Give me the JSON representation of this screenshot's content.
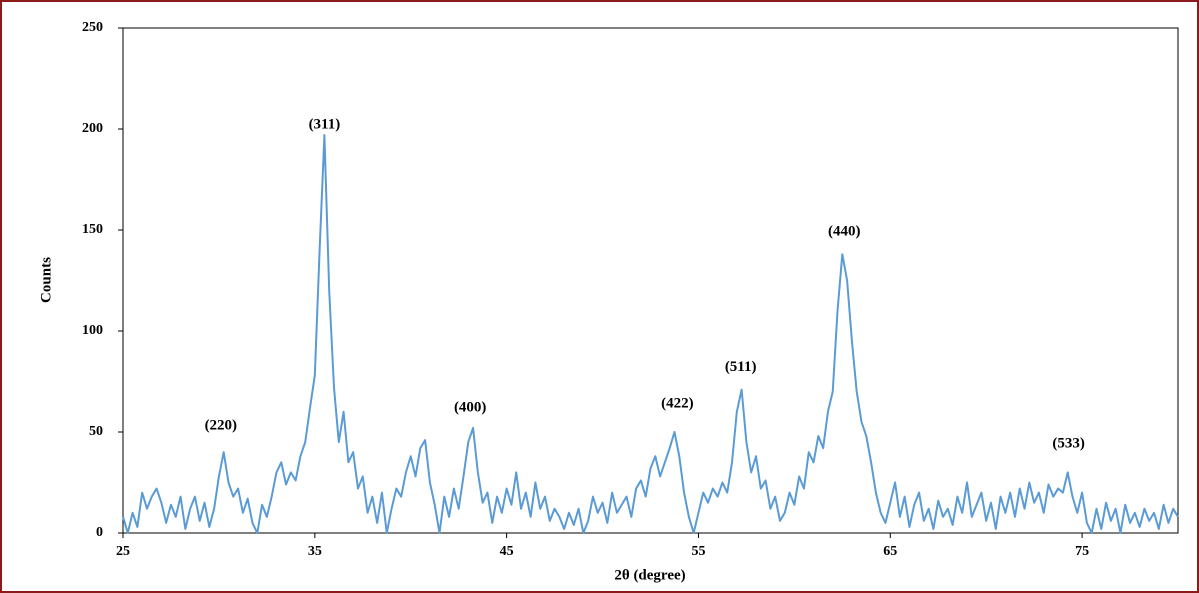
{
  "chart_data": {
    "type": "line",
    "x_label": "2θ (degree)",
    "y_label": "Counts",
    "xlim": [
      25,
      80
    ],
    "xticks": [
      25,
      35,
      45,
      55,
      65,
      75
    ],
    "ylim": [
      0,
      250
    ],
    "yticks": [
      0,
      50,
      100,
      150,
      200,
      250
    ],
    "series": [
      {
        "color": "#5b9bd5",
        "x": [
          25,
          25.25,
          25.5,
          25.75,
          26,
          26.25,
          26.5,
          26.75,
          27,
          27.25,
          27.5,
          27.75,
          28,
          28.25,
          28.5,
          28.75,
          29,
          29.25,
          29.5,
          29.75,
          30,
          30.25,
          30.5,
          30.75,
          31,
          31.25,
          31.5,
          31.75,
          32,
          32.25,
          32.5,
          32.75,
          33,
          33.25,
          33.5,
          33.75,
          34,
          34.25,
          34.5,
          34.75,
          35,
          35.25,
          35.5,
          35.75,
          36,
          36.25,
          36.5,
          36.75,
          37,
          37.25,
          37.5,
          37.75,
          38,
          38.25,
          38.5,
          38.75,
          39,
          39.25,
          39.5,
          39.75,
          40,
          40.25,
          40.5,
          40.75,
          41,
          41.25,
          41.5,
          41.75,
          42,
          42.25,
          42.5,
          42.75,
          43,
          43.25,
          43.5,
          43.75,
          44,
          44.25,
          44.5,
          44.75,
          45,
          45.25,
          45.5,
          45.75,
          46,
          46.25,
          46.5,
          46.75,
          47,
          47.25,
          47.5,
          47.75,
          48,
          48.25,
          48.5,
          48.75,
          49,
          49.25,
          49.5,
          49.75,
          50,
          50.25,
          50.5,
          50.75,
          51,
          51.25,
          51.5,
          51.75,
          52,
          52.25,
          52.5,
          52.75,
          53,
          53.25,
          53.5,
          53.75,
          54,
          54.25,
          54.5,
          54.75,
          55,
          55.25,
          55.5,
          55.75,
          56,
          56.25,
          56.5,
          56.75,
          57,
          57.25,
          57.5,
          57.75,
          58,
          58.25,
          58.5,
          58.75,
          59,
          59.25,
          59.5,
          59.75,
          60,
          60.25,
          60.5,
          60.75,
          61,
          61.25,
          61.5,
          61.75,
          62,
          62.25,
          62.5,
          62.75,
          63,
          63.25,
          63.5,
          63.75,
          64,
          64.25,
          64.5,
          64.75,
          65,
          65.25,
          65.5,
          65.75,
          66,
          66.25,
          66.5,
          66.75,
          67,
          67.25,
          67.5,
          67.75,
          68,
          68.25,
          68.5,
          68.75,
          69,
          69.25,
          69.5,
          69.75,
          70,
          70.25,
          70.5,
          70.75,
          71,
          71.25,
          71.5,
          71.75,
          72,
          72.25,
          72.5,
          72.75,
          73,
          73.25,
          73.5,
          73.75,
          74,
          74.25,
          74.5,
          74.75,
          75,
          75.25,
          75.5,
          75.75,
          76,
          76.25,
          76.5,
          76.75,
          77,
          77.25,
          77.5,
          77.75,
          78,
          78.25,
          78.5,
          78.75,
          79,
          79.25,
          79.5,
          79.75,
          80
        ],
        "values": [
          8,
          0,
          10,
          3,
          20,
          12,
          18,
          22,
          15,
          5,
          14,
          8,
          18,
          2,
          12,
          18,
          6,
          15,
          3,
          12,
          28,
          40,
          25,
          18,
          22,
          10,
          17,
          5,
          0,
          14,
          8,
          18,
          30,
          35,
          24,
          30,
          26,
          38,
          45,
          62,
          78,
          140,
          197,
          120,
          72,
          45,
          60,
          35,
          40,
          22,
          28,
          10,
          18,
          5,
          20,
          0,
          12,
          22,
          18,
          30,
          38,
          28,
          42,
          46,
          25,
          14,
          0,
          18,
          8,
          22,
          12,
          28,
          45,
          52,
          30,
          15,
          20,
          5,
          18,
          10,
          22,
          14,
          30,
          12,
          20,
          8,
          25,
          12,
          18,
          6,
          12,
          8,
          2,
          10,
          4,
          12,
          0,
          6,
          18,
          10,
          15,
          5,
          20,
          10,
          14,
          18,
          8,
          22,
          26,
          18,
          32,
          38,
          28,
          35,
          42,
          50,
          38,
          20,
          8,
          0,
          10,
          20,
          15,
          22,
          18,
          25,
          20,
          35,
          60,
          71,
          45,
          30,
          38,
          22,
          26,
          12,
          18,
          6,
          10,
          20,
          14,
          28,
          22,
          40,
          35,
          48,
          42,
          60,
          70,
          110,
          138,
          125,
          95,
          70,
          55,
          48,
          35,
          20,
          10,
          5,
          15,
          25,
          8,
          18,
          3,
          14,
          20,
          6,
          12,
          2,
          16,
          8,
          12,
          4,
          18,
          10,
          25,
          8,
          14,
          20,
          6,
          15,
          2,
          18,
          10,
          20,
          8,
          22,
          12,
          25,
          15,
          20,
          10,
          24,
          18,
          22,
          20,
          30,
          18,
          10,
          20,
          5,
          0,
          12,
          2,
          15,
          6,
          12,
          0,
          14,
          5,
          10,
          3,
          12,
          6,
          10,
          2,
          14,
          5,
          12,
          8
        ]
      }
    ],
    "annotations": [
      {
        "text": "(220)",
        "x": 30.1,
        "y": 48
      },
      {
        "text": "(311)",
        "x": 35.5,
        "y": 197
      },
      {
        "text": "(400)",
        "x": 43.1,
        "y": 57
      },
      {
        "text": "(422)",
        "x": 53.9,
        "y": 59
      },
      {
        "text": "(511)",
        "x": 57.2,
        "y": 77
      },
      {
        "text": "(440)",
        "x": 62.6,
        "y": 144
      },
      {
        "text": "(533)",
        "x": 74.3,
        "y": 39
      }
    ]
  }
}
